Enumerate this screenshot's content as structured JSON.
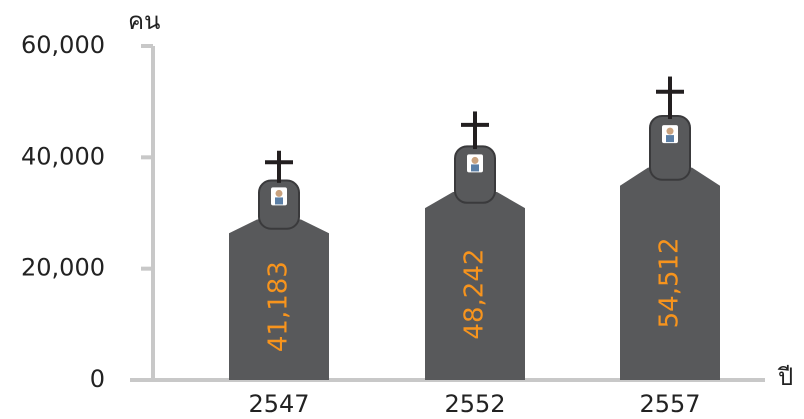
{
  "chart_data": {
    "type": "tombstone",
    "y_label": "คน",
    "x_label": "ปี",
    "categories": [
      "2547",
      "2552",
      "2557"
    ],
    "values": [
      41183,
      48242,
      54512
    ],
    "value_labels": [
      "41,183",
      "48,242",
      "54,512"
    ],
    "color": "#58595b",
    "label_color": "#f7941d",
    "axis_color": "#c8c8c8",
    "ylim": [
      0,
      60000
    ],
    "yticks": [
      0,
      {
        "value": 20000,
        "label": "20,000"
      },
      {
        "value": 40000,
        "label": "40,000"
      },
      {
        "value": 60000,
        "label": "60,000"
      }
    ]
  }
}
